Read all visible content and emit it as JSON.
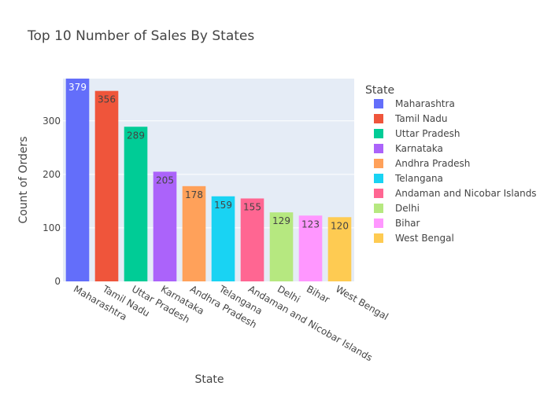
{
  "chart_data": {
    "type": "bar",
    "title": "Top 10 Number of Sales By States",
    "xlabel": "State",
    "ylabel": "Count of Orders",
    "ylim": [
      0,
      379
    ],
    "yticks": [
      0,
      100,
      200,
      300
    ],
    "grid": true,
    "legend": {
      "title": "State",
      "position": "right"
    },
    "categories": [
      "Maharashtra",
      "Tamil Nadu",
      "Uttar Pradesh",
      "Karnataka",
      "Andhra Pradesh",
      "Telangana",
      "Andaman and Nicobar Islands",
      "Delhi",
      "Bihar",
      "West Bengal"
    ],
    "values": [
      379,
      356,
      289,
      205,
      178,
      159,
      155,
      129,
      123,
      120
    ],
    "colors": [
      "#636efa",
      "#EF553B",
      "#00cc96",
      "#ab63fa",
      "#FFA15A",
      "#19d3f3",
      "#FF6692",
      "#B6E880",
      "#FF97FF",
      "#FECB52"
    ],
    "label_colors": [
      "#ffffff",
      "#444444",
      "#444444",
      "#444444",
      "#444444",
      "#444444",
      "#444444",
      "#444444",
      "#444444",
      "#444444"
    ],
    "plot_bg": "#e5ecf6"
  }
}
